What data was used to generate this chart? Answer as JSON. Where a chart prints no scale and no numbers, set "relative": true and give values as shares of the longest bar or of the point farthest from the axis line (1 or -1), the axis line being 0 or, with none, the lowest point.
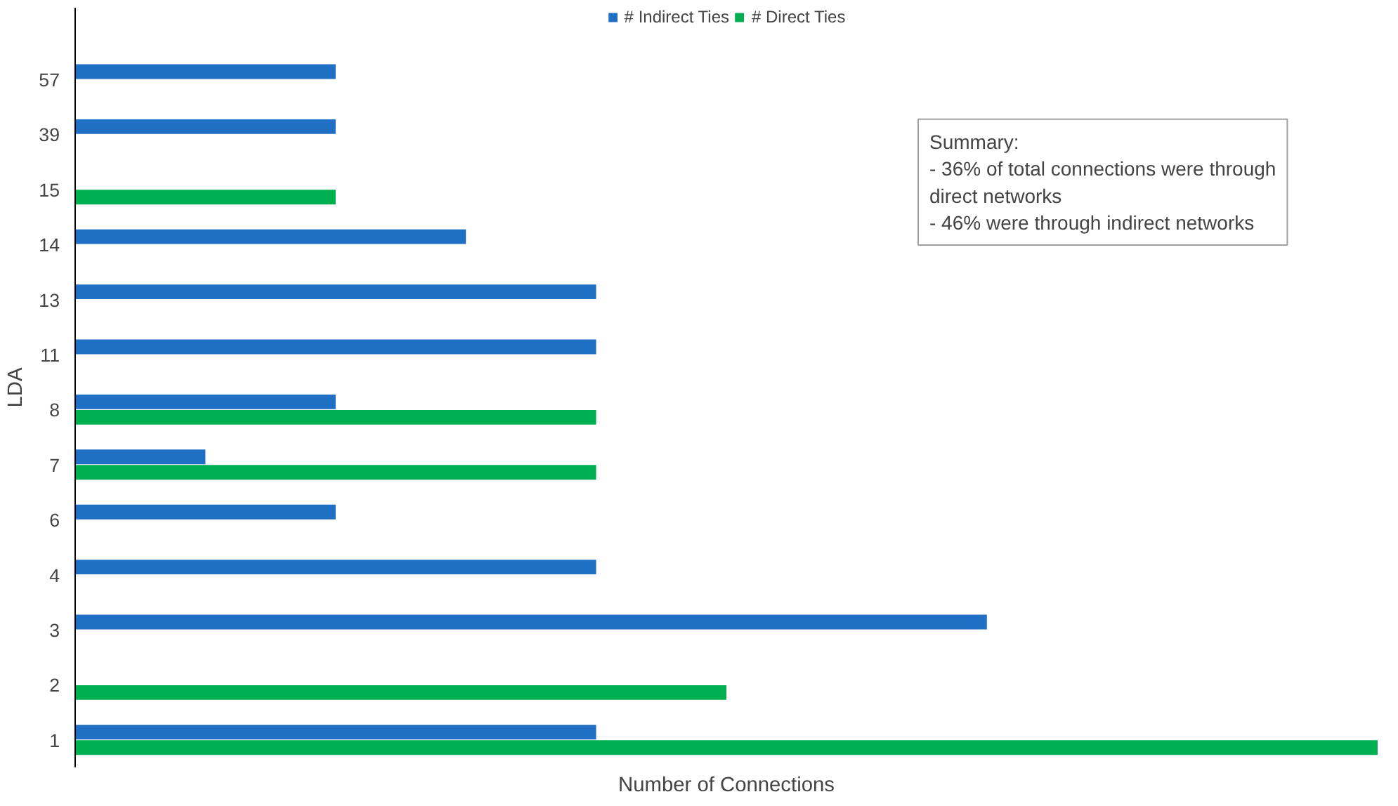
{
  "chart_data": {
    "type": "bar",
    "orientation": "horizontal",
    "relative": true,
    "xlabel": "Number of Connections",
    "ylabel": "LDA",
    "categories": [
      "57",
      "39",
      "15",
      "14",
      "13",
      "11",
      "8",
      "7",
      "6",
      "4",
      "3",
      "2",
      "1"
    ],
    "series": [
      {
        "name": "# Indirect Ties",
        "color": "#1f6fc5",
        "values": [
          0.2,
          0.2,
          null,
          0.3,
          0.4,
          0.4,
          0.2,
          0.1,
          0.2,
          0.4,
          0.7,
          null,
          0.4
        ]
      },
      {
        "name": "# Direct Ties",
        "color": "#00b050",
        "values": [
          null,
          null,
          0.2,
          null,
          null,
          null,
          0.4,
          0.4,
          null,
          null,
          null,
          0.5,
          1.0
        ]
      }
    ],
    "legend": "top",
    "grid": false,
    "annotations": [
      "Summary:",
      "- 36% of total connections were through\n  direct networks",
      "- 46% were through indirect networks"
    ]
  }
}
